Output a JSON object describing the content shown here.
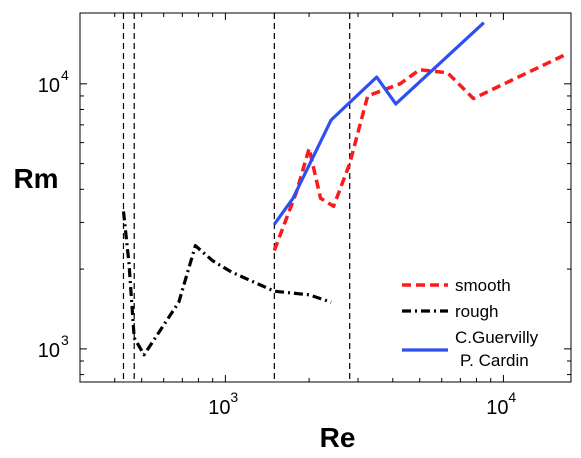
{
  "chart_data": {
    "type": "line",
    "xlabel": "Re",
    "ylabel": "Rm",
    "xscale": "log",
    "yscale": "log",
    "xlim": [
      300,
      17500
    ],
    "ylim": [
      750,
      18500
    ],
    "grid": false,
    "legend_position": "bottom-right",
    "x_ticks": [
      {
        "value": 1000,
        "base": "10",
        "exponent": "3"
      },
      {
        "value": 10000,
        "base": "10",
        "exponent": "4"
      }
    ],
    "y_ticks": [
      {
        "value": 1000,
        "base": "10",
        "exponent": "3"
      },
      {
        "value": 10000,
        "base": "10",
        "exponent": "4"
      }
    ],
    "vertical_reference_lines": [
      430,
      470,
      1500,
      2800
    ],
    "series": [
      {
        "name": "smooth",
        "color": "#ff1a1a",
        "style": "dashed",
        "legend_lines": [
          "smooth"
        ],
        "points": [
          [
            1500,
            2350
          ],
          [
            1800,
            3900
          ],
          [
            2000,
            5700
          ],
          [
            2200,
            3700
          ],
          [
            2450,
            3450
          ],
          [
            2800,
            5000
          ],
          [
            3250,
            9000
          ],
          [
            4250,
            10000
          ],
          [
            5000,
            11300
          ],
          [
            6300,
            11000
          ],
          [
            7800,
            8800
          ],
          [
            17000,
            13000
          ]
        ]
      },
      {
        "name": "rough",
        "color": "#000000",
        "style": "dashdot",
        "legend_lines": [
          "rough"
        ],
        "points": [
          [
            430,
            3300
          ],
          [
            450,
            2100
          ],
          [
            470,
            1100
          ],
          [
            510,
            950
          ],
          [
            680,
            1500
          ],
          [
            780,
            2450
          ],
          [
            900,
            2150
          ],
          [
            1050,
            1950
          ],
          [
            1500,
            1650
          ],
          [
            2000,
            1600
          ],
          [
            2400,
            1500
          ]
        ]
      },
      {
        "name": "C.Guervilly P. Cardin",
        "color": "#2e4ff2",
        "style": "solid",
        "legend_lines": [
          "C.Guervilly",
          "P. Cardin"
        ],
        "points": [
          [
            1500,
            2950
          ],
          [
            1750,
            3700
          ],
          [
            2400,
            7300
          ],
          [
            3500,
            10600
          ],
          [
            4100,
            8400
          ],
          [
            8500,
            17000
          ]
        ]
      }
    ]
  }
}
